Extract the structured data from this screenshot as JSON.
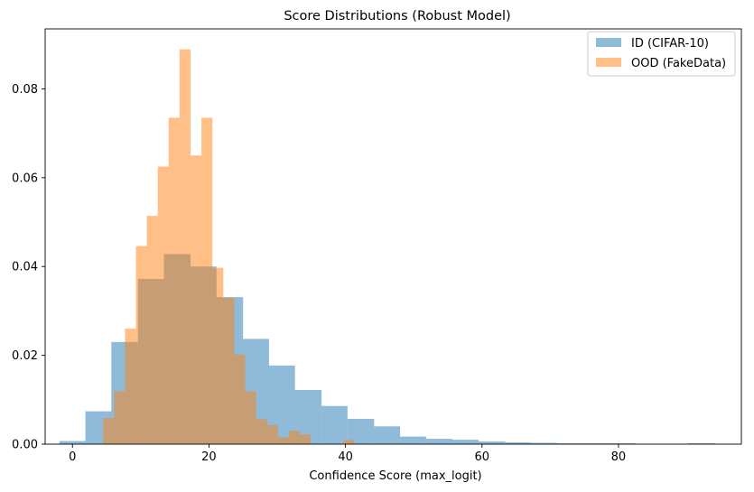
{
  "chart_data": {
    "type": "bar",
    "title": "Score Distributions (Robust Model)",
    "xlabel": "Confidence Score (max_logit)",
    "ylabel": "",
    "xlim": [
      -4.0,
      98.0
    ],
    "ylim": [
      0,
      0.0935
    ],
    "x_ticks": [
      0,
      20,
      40,
      60,
      80
    ],
    "y_ticks": [
      0.0,
      0.02,
      0.04,
      0.06,
      0.08
    ],
    "y_tick_labels": [
      "0.00",
      "0.02",
      "0.04",
      "0.06",
      "0.08"
    ],
    "legend_position": "top-right",
    "series": [
      {
        "name": "ID (CIFAR-10)",
        "color": "#1f77b4",
        "opacity": 0.5,
        "bins": [
          {
            "x0": -1.9,
            "x1": 1.9,
            "value": 0.0007
          },
          {
            "x0": 1.9,
            "x1": 5.7,
            "value": 0.0074
          },
          {
            "x0": 5.7,
            "x1": 9.6,
            "value": 0.023
          },
          {
            "x0": 9.6,
            "x1": 13.4,
            "value": 0.0372
          },
          {
            "x0": 13.4,
            "x1": 17.3,
            "value": 0.0428
          },
          {
            "x0": 17.3,
            "x1": 21.1,
            "value": 0.04
          },
          {
            "x0": 21.1,
            "x1": 25.0,
            "value": 0.0331
          },
          {
            "x0": 25.0,
            "x1": 28.8,
            "value": 0.0237
          },
          {
            "x0": 28.8,
            "x1": 32.6,
            "value": 0.0177
          },
          {
            "x0": 32.6,
            "x1": 36.5,
            "value": 0.0122
          },
          {
            "x0": 36.5,
            "x1": 40.3,
            "value": 0.0086
          },
          {
            "x0": 40.3,
            "x1": 44.2,
            "value": 0.0057
          },
          {
            "x0": 44.2,
            "x1": 48.0,
            "value": 0.004
          },
          {
            "x0": 48.0,
            "x1": 51.8,
            "value": 0.0017
          },
          {
            "x0": 51.8,
            "x1": 55.7,
            "value": 0.0012
          },
          {
            "x0": 55.7,
            "x1": 59.5,
            "value": 0.001
          },
          {
            "x0": 59.5,
            "x1": 63.4,
            "value": 0.0006
          },
          {
            "x0": 63.4,
            "x1": 67.2,
            "value": 0.0004
          },
          {
            "x0": 67.2,
            "x1": 71.0,
            "value": 0.0003
          },
          {
            "x0": 71.0,
            "x1": 74.9,
            "value": 0.0002
          },
          {
            "x0": 74.9,
            "x1": 78.7,
            "value": 0.0002
          },
          {
            "x0": 78.7,
            "x1": 82.6,
            "value": 0.0002
          },
          {
            "x0": 82.6,
            "x1": 86.4,
            "value": 0.0
          },
          {
            "x0": 86.4,
            "x1": 90.2,
            "value": 0.0
          },
          {
            "x0": 90.2,
            "x1": 94.1,
            "value": 0.0002
          }
        ]
      },
      {
        "name": "OOD (FakeData)",
        "color": "#ff7f0e",
        "opacity": 0.5,
        "bins": [
          {
            "x0": 4.5,
            "x1": 6.1,
            "value": 0.0059
          },
          {
            "x0": 6.1,
            "x1": 7.7,
            "value": 0.0119
          },
          {
            "x0": 7.7,
            "x1": 9.3,
            "value": 0.026
          },
          {
            "x0": 9.3,
            "x1": 10.9,
            "value": 0.0446
          },
          {
            "x0": 10.9,
            "x1": 12.5,
            "value": 0.0514
          },
          {
            "x0": 12.5,
            "x1": 14.1,
            "value": 0.0625
          },
          {
            "x0": 14.1,
            "x1": 15.7,
            "value": 0.0735
          },
          {
            "x0": 15.7,
            "x1": 17.3,
            "value": 0.0889
          },
          {
            "x0": 17.3,
            "x1": 18.9,
            "value": 0.065
          },
          {
            "x0": 18.9,
            "x1": 20.5,
            "value": 0.0735
          },
          {
            "x0": 20.5,
            "x1": 22.1,
            "value": 0.0397
          },
          {
            "x0": 22.1,
            "x1": 23.7,
            "value": 0.033
          },
          {
            "x0": 23.7,
            "x1": 25.3,
            "value": 0.0202
          },
          {
            "x0": 25.3,
            "x1": 26.9,
            "value": 0.0119
          },
          {
            "x0": 26.9,
            "x1": 28.5,
            "value": 0.0056
          },
          {
            "x0": 28.5,
            "x1": 30.1,
            "value": 0.0043
          },
          {
            "x0": 30.1,
            "x1": 31.7,
            "value": 0.0015
          },
          {
            "x0": 31.7,
            "x1": 33.3,
            "value": 0.003
          },
          {
            "x0": 33.3,
            "x1": 34.9,
            "value": 0.0022
          },
          {
            "x0": 34.9,
            "x1": 36.5,
            "value": 0.0
          },
          {
            "x0": 36.5,
            "x1": 38.1,
            "value": 0.0
          },
          {
            "x0": 38.1,
            "x1": 39.7,
            "value": 0.0
          },
          {
            "x0": 39.7,
            "x1": 41.3,
            "value": 0.0009
          }
        ]
      }
    ]
  }
}
